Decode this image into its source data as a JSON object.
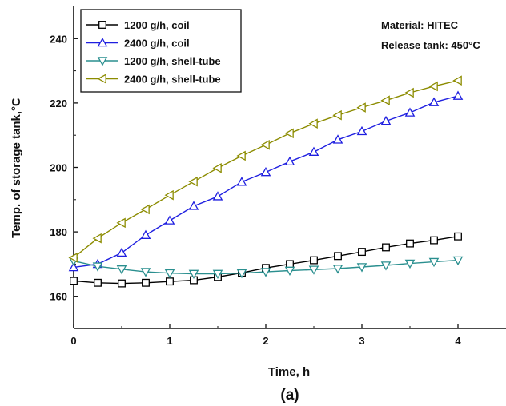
{
  "chart_data": {
    "type": "line",
    "xlabel": "Time, h",
    "ylabel": "Temp. of storage tank,°C",
    "caption": "(a)",
    "xlim": [
      0,
      4.5
    ],
    "ylim": [
      150,
      250
    ],
    "xticks": [
      0,
      1,
      2,
      3,
      4
    ],
    "yticks": [
      160,
      180,
      200,
      220,
      240
    ],
    "x": [
      0,
      0.25,
      0.5,
      0.75,
      1,
      1.25,
      1.5,
      1.75,
      2,
      2.25,
      2.5,
      2.75,
      3,
      3.25,
      3.5,
      3.75,
      4
    ],
    "annotations": [
      "Material: HITEC",
      "Release tank: 450°C"
    ],
    "legend_position": "top-left",
    "grid": false,
    "series": [
      {
        "name": "1200 g/h, coil",
        "marker": "square",
        "color": "#000000",
        "values": [
          164.8,
          164.2,
          164.0,
          164.2,
          164.6,
          165.0,
          166.0,
          167.3,
          168.8,
          170.0,
          171.2,
          172.5,
          173.8,
          175.2,
          176.4,
          177.4,
          178.6
        ]
      },
      {
        "name": "2400 g/h, coil",
        "marker": "triangle-up",
        "color": "#1f1fe0",
        "values": [
          169.0,
          170.0,
          173.5,
          179.0,
          183.5,
          188.0,
          191.0,
          195.5,
          198.5,
          201.8,
          204.8,
          208.6,
          211.2,
          214.4,
          217.0,
          220.2,
          222.2
        ]
      },
      {
        "name": "1200 g/h, shell-tube",
        "marker": "triangle-down",
        "color": "#2a8f8f",
        "values": [
          171.0,
          169.3,
          168.4,
          167.6,
          167.2,
          167.0,
          167.0,
          167.2,
          167.6,
          168.0,
          168.3,
          168.6,
          169.1,
          169.6,
          170.2,
          170.7,
          171.2
        ]
      },
      {
        "name": "2400 g/h, shell-tube",
        "marker": "triangle-left",
        "color": "#8c8c00",
        "values": [
          172.0,
          178.0,
          182.8,
          187.0,
          191.4,
          195.6,
          199.8,
          203.6,
          207.0,
          210.6,
          213.6,
          216.2,
          218.6,
          220.8,
          223.2,
          225.2,
          227.0
        ]
      }
    ]
  }
}
